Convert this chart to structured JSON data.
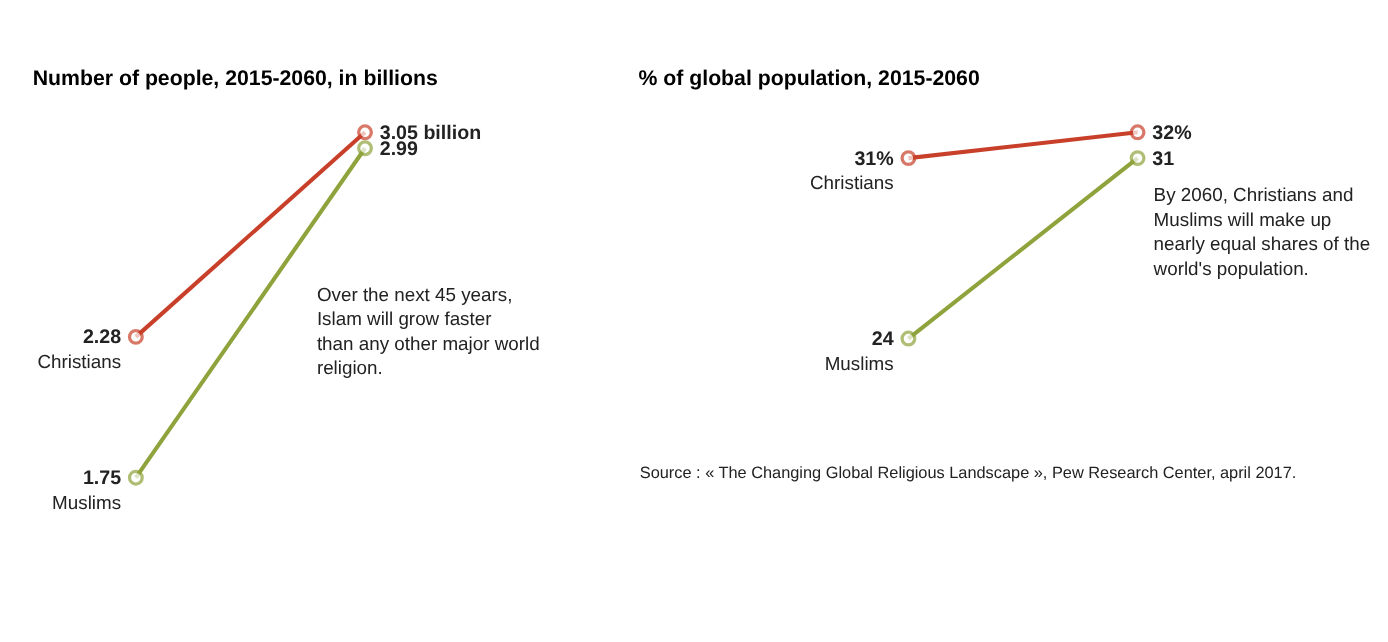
{
  "chart_data": [
    {
      "type": "line",
      "title": "Number of people, 2015-2060, in billions",
      "categories": [
        null,
        null
      ],
      "tick_labels": false,
      "grid": false,
      "legend": "left",
      "marker": "circle",
      "line_style": "solid",
      "series": [
        {
          "name": "Christians",
          "color": "#c8402a",
          "values": [
            2.28,
            3.05
          ],
          "value_labels": [
            "2.28",
            "3.05 billion"
          ]
        },
        {
          "name": "Muslims",
          "color": "#8fa33c",
          "values": [
            1.75,
            2.99
          ],
          "value_labels": [
            "1.75",
            "2.99"
          ]
        }
      ],
      "annotations": [
        "Over the next 45 years, Islam will grow faster than any other major world religion."
      ]
    },
    {
      "type": "line",
      "title": "% of global population, 2015-2060",
      "categories": [
        null,
        null
      ],
      "tick_labels": false,
      "grid": false,
      "legend": "left",
      "marker": "circle",
      "line_style": "solid",
      "series": [
        {
          "name": "Christians",
          "color": "#c8402a",
          "values": [
            31,
            32
          ],
          "value_labels": [
            "31%",
            "32%"
          ]
        },
        {
          "name": "Muslims",
          "color": "#8fa33c",
          "values": [
            24,
            31
          ],
          "value_labels": [
            "24",
            "31"
          ]
        }
      ],
      "annotations": [
        "By 2060, Christians and Muslims will make up nearly equal shares of the world's population.",
        "Source : « The Changing Global Religious Landscape », Pew Research Center, april 2017."
      ]
    }
  ]
}
